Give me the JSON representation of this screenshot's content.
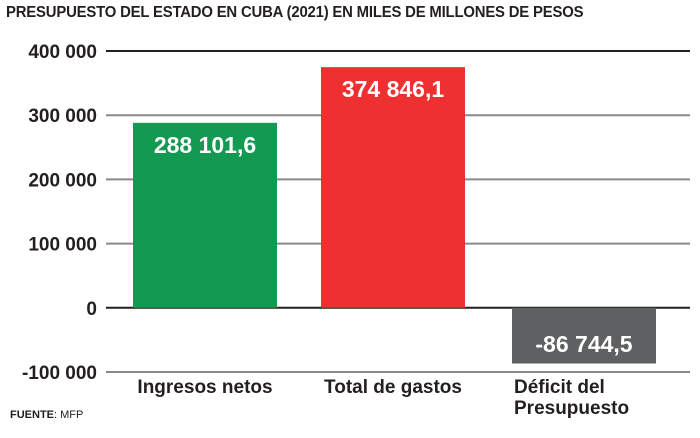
{
  "chart_data": {
    "type": "bar",
    "title": "PRESUPUESTO DEL ESTADO EN CUBA (2021) EN MILES DE MILLONES DE PESOS",
    "xlabel": "",
    "ylabel": "",
    "ylim": [
      -100000,
      400000
    ],
    "yticks": [
      400000,
      300000,
      200000,
      100000,
      0,
      -100000
    ],
    "ytick_labels": [
      "400 000",
      "300 000",
      "200 000",
      "100 000",
      "0",
      "-100 000"
    ],
    "grid": true,
    "categories": [
      "Ingresos netos",
      "Total de gastos",
      "Déficit del Presupuesto"
    ],
    "category_lines": [
      [
        "Ingresos netos"
      ],
      [
        "Total de gastos"
      ],
      [
        "Déficit del",
        "Presupuesto"
      ]
    ],
    "values": [
      288101.6,
      374846.1,
      -86744.5
    ],
    "data_labels": [
      "288 101,6",
      "374 846,1",
      "-86 744,5"
    ],
    "colors": [
      "#139952",
      "#ee3030",
      "#5e6061"
    ]
  },
  "source": {
    "label": "FUENTE",
    "value": ": MFP"
  }
}
